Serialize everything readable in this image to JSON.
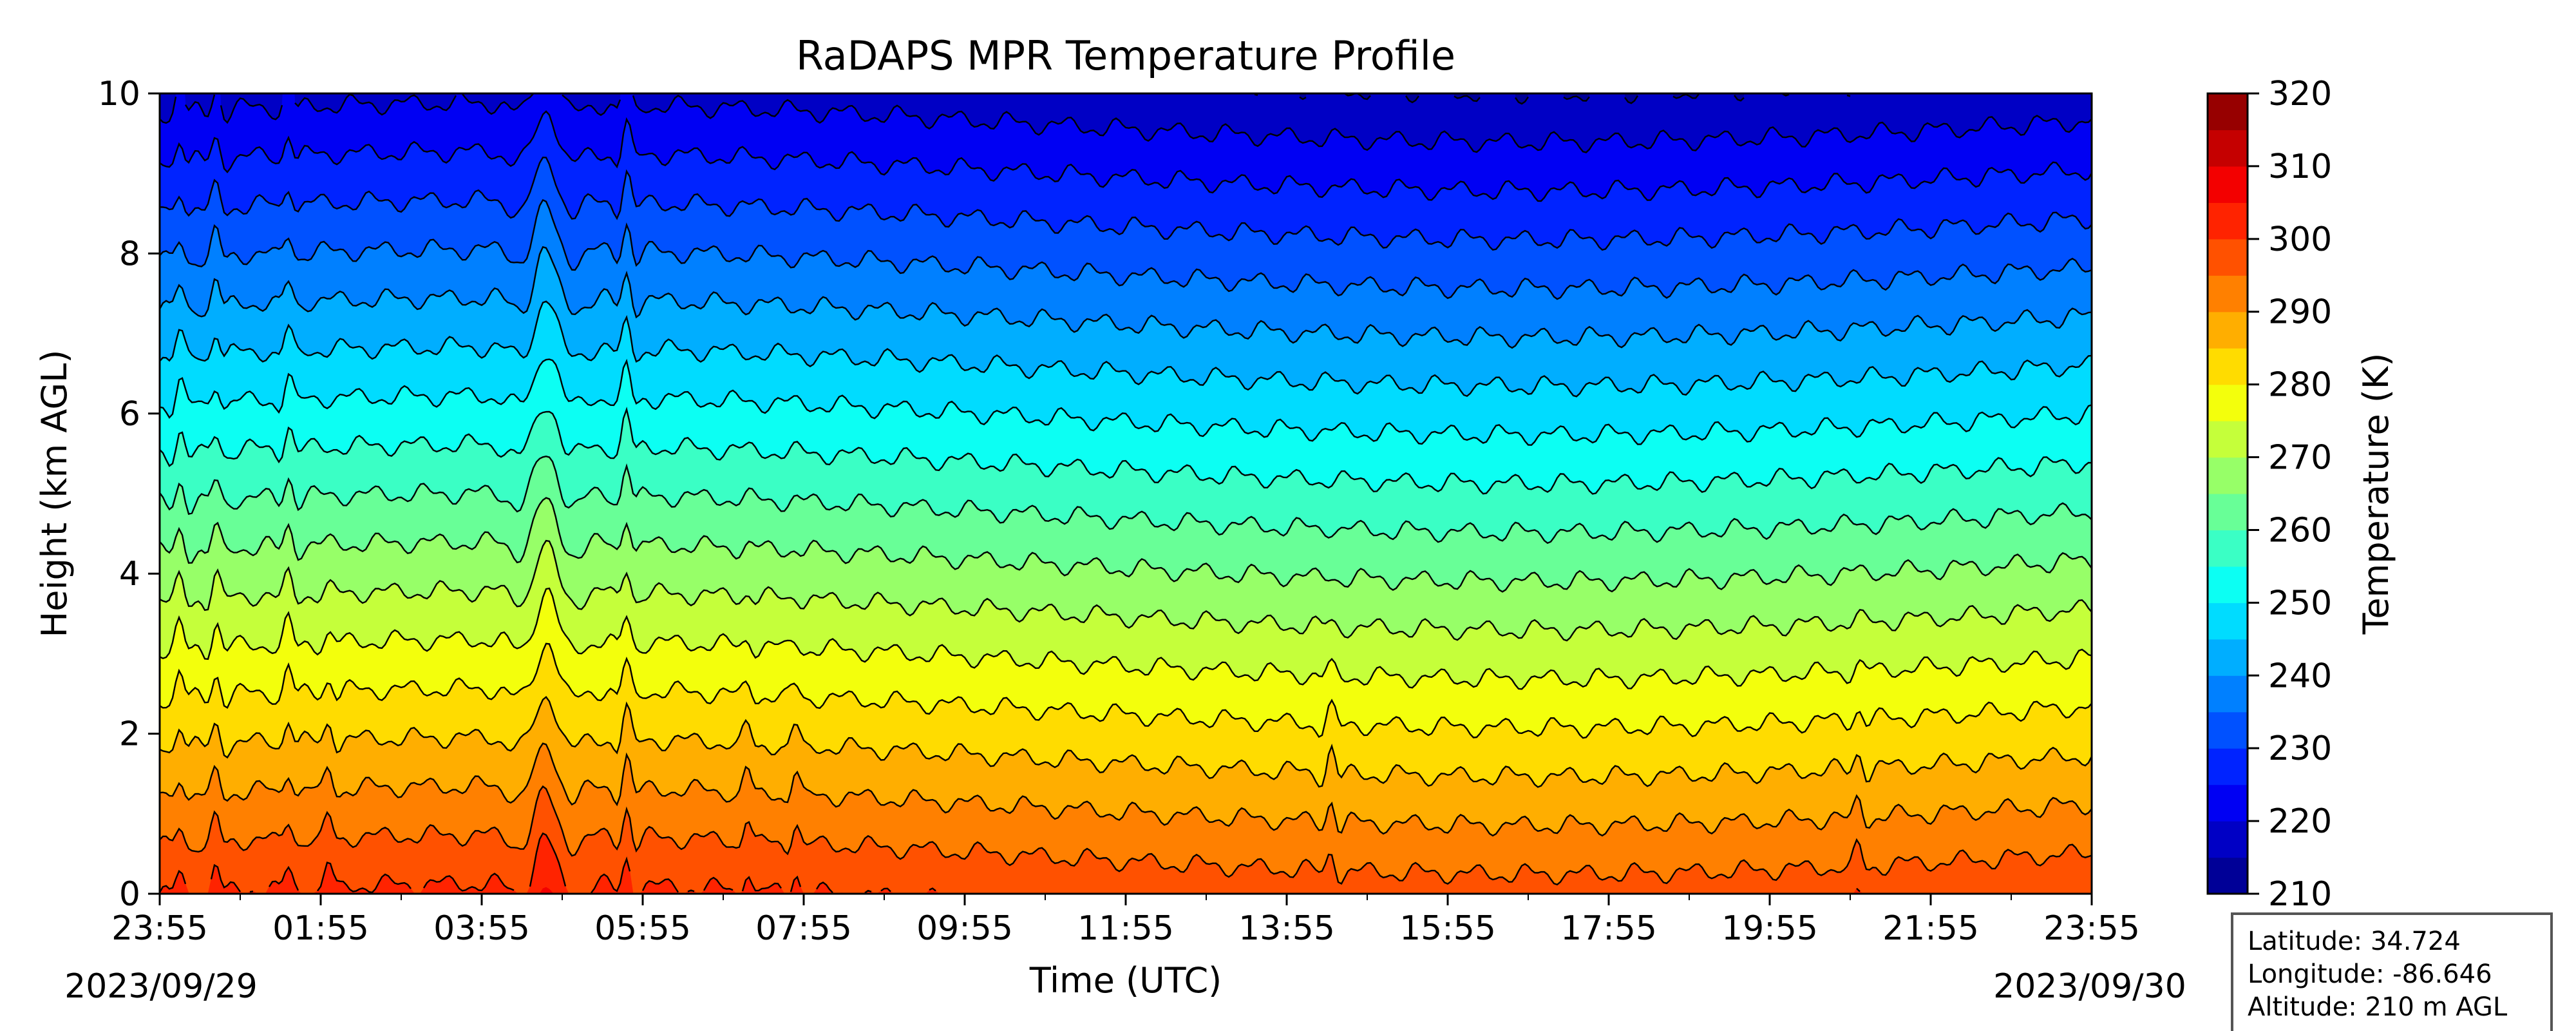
{
  "chart_data": {
    "type": "heatmap",
    "title": "RaDAPS MPR Temperature Profile",
    "xlabel": "Time (UTC)",
    "ylabel": "Height (km AGL)",
    "x_tick_labels": [
      "23:55",
      "01:55",
      "03:55",
      "05:55",
      "07:55",
      "09:55",
      "11:55",
      "13:55",
      "15:55",
      "17:55",
      "19:55",
      "21:55",
      "23:55"
    ],
    "x_range_hours": [
      0,
      24
    ],
    "date_start": "2023/09/29",
    "date_end": "2023/09/30",
    "y_ticks": [
      0,
      2,
      4,
      6,
      8,
      10
    ],
    "ylim": [
      0,
      10
    ],
    "colorbar": {
      "label": "Temperature (K)",
      "range": [
        210,
        320
      ],
      "ticks": [
        210,
        220,
        230,
        240,
        250,
        260,
        270,
        280,
        290,
        300,
        310,
        320
      ],
      "level_step": 5,
      "colormap": "jet"
    },
    "contour_levels": [
      215,
      220,
      225,
      230,
      235,
      240,
      245,
      250,
      255,
      260,
      265,
      270,
      275,
      280,
      285,
      290,
      295,
      300
    ],
    "surface_temperature_range": [
      297,
      301
    ],
    "lapse_rate_K_per_km": 8.2,
    "perturbation_events": [
      {
        "time_hours": 0.25,
        "height_extent_km": 10,
        "kind": "narrow spike"
      },
      {
        "time_hours": 0.7,
        "height_extent_km": 10,
        "kind": "narrow spike"
      },
      {
        "time_hours": 1.6,
        "height_extent_km": 10,
        "kind": "narrow spike"
      },
      {
        "time_hours": 2.1,
        "height_extent_km": 2,
        "kind": "narrow spike"
      },
      {
        "time_hours": 4.8,
        "height_extent_km": 10,
        "kind": "strong sharp oscillation"
      },
      {
        "time_hours": 5.8,
        "height_extent_km": 10,
        "kind": "oscillation"
      },
      {
        "time_hours": 7.3,
        "height_extent_km": 2,
        "kind": "low-level bump"
      },
      {
        "time_hours": 7.9,
        "height_extent_km": 2,
        "kind": "low-level bump"
      },
      {
        "time_hours": 14.55,
        "height_extent_km": 2,
        "kind": "low-level spike"
      },
      {
        "time_hours": 21.1,
        "height_extent_km": 1.5,
        "kind": "low-level bump"
      }
    ]
  },
  "info_box": {
    "latitude": "Latitude: 34.724",
    "longitude": "Longitude: -86.646",
    "altitude": "Altitude: 210 m AGL"
  }
}
